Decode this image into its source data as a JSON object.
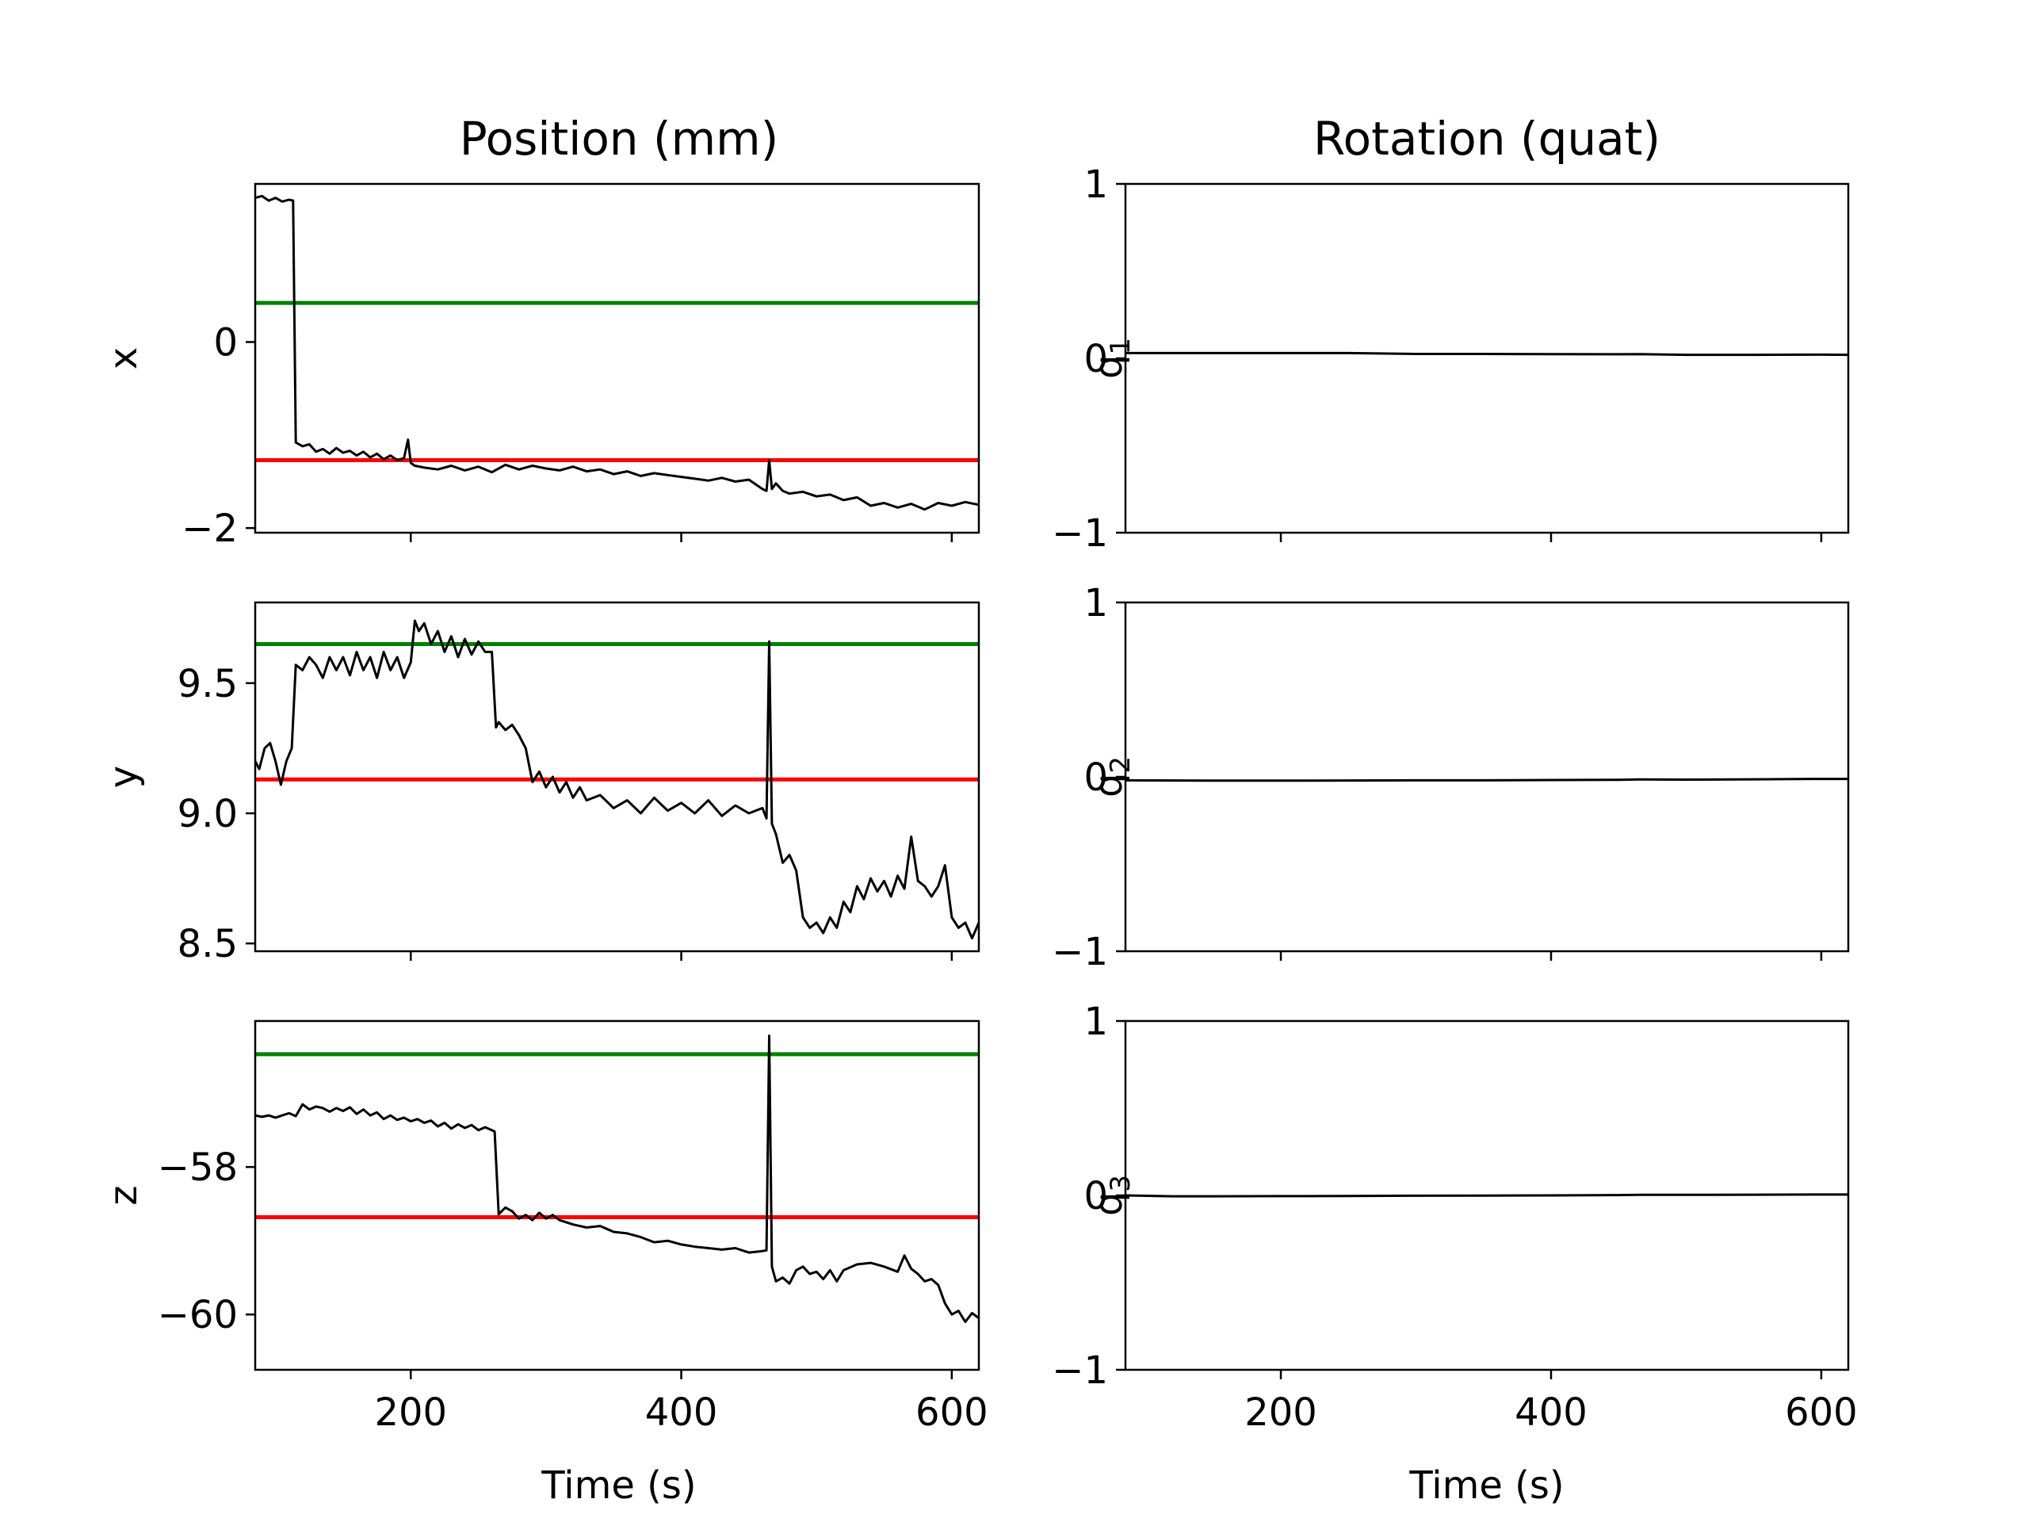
{
  "figure": {
    "position_title": "Position (mm)",
    "rotation_title": "Rotation (quat)",
    "xlabel": "Time (s)"
  },
  "chart_data": [
    {
      "type": "line",
      "panel": "position-x",
      "ylabel": "x",
      "xlim": [
        85,
        620
      ],
      "ylim": [
        -2.05,
        1.7
      ],
      "xticks": [
        200,
        400,
        600
      ],
      "yticks": [
        0,
        -2
      ],
      "ytick_labels": [
        "0",
        "−2"
      ],
      "grid": false,
      "reference_lines": [
        {
          "color": "#008000",
          "value": 0.42
        },
        {
          "color": "#ff0000",
          "value": -1.27
        }
      ],
      "series": [
        {
          "color": "#000000",
          "x": [
            85,
            90,
            95,
            100,
            105,
            110,
            113,
            115,
            120,
            125,
            130,
            135,
            140,
            145,
            150,
            155,
            160,
            165,
            170,
            175,
            180,
            185,
            190,
            195,
            198,
            200,
            203,
            210,
            220,
            230,
            240,
            250,
            260,
            270,
            280,
            290,
            300,
            310,
            320,
            330,
            340,
            350,
            360,
            370,
            380,
            390,
            400,
            410,
            420,
            430,
            440,
            450,
            460,
            463,
            465,
            467,
            470,
            475,
            480,
            490,
            500,
            510,
            520,
            530,
            540,
            550,
            560,
            570,
            580,
            590,
            600,
            610,
            620
          ],
          "y": [
            1.55,
            1.57,
            1.52,
            1.55,
            1.51,
            1.53,
            1.52,
            -1.08,
            -1.12,
            -1.1,
            -1.18,
            -1.15,
            -1.2,
            -1.14,
            -1.19,
            -1.17,
            -1.22,
            -1.18,
            -1.24,
            -1.2,
            -1.26,
            -1.22,
            -1.27,
            -1.25,
            -1.05,
            -1.3,
            -1.33,
            -1.35,
            -1.37,
            -1.33,
            -1.38,
            -1.34,
            -1.4,
            -1.32,
            -1.37,
            -1.33,
            -1.36,
            -1.38,
            -1.34,
            -1.39,
            -1.37,
            -1.42,
            -1.39,
            -1.44,
            -1.41,
            -1.43,
            -1.45,
            -1.47,
            -1.49,
            -1.46,
            -1.5,
            -1.48,
            -1.58,
            -1.6,
            -1.27,
            -1.58,
            -1.52,
            -1.6,
            -1.63,
            -1.61,
            -1.66,
            -1.64,
            -1.7,
            -1.67,
            -1.76,
            -1.73,
            -1.78,
            -1.74,
            -1.8,
            -1.73,
            -1.76,
            -1.72,
            -1.75
          ]
        }
      ]
    },
    {
      "type": "line",
      "panel": "position-y",
      "ylabel": "y",
      "xlim": [
        85,
        620
      ],
      "ylim": [
        8.47,
        9.81
      ],
      "xticks": [
        200,
        400,
        600
      ],
      "yticks": [
        9.5,
        9.0,
        8.5
      ],
      "ytick_labels": [
        "9.5",
        "9.0",
        "8.5"
      ],
      "grid": false,
      "reference_lines": [
        {
          "color": "#008000",
          "value": 9.65
        },
        {
          "color": "#ff0000",
          "value": 9.13
        }
      ],
      "series": [
        {
          "color": "#000000",
          "x": [
            85,
            88,
            92,
            96,
            100,
            104,
            108,
            112,
            115,
            120,
            125,
            130,
            135,
            140,
            145,
            150,
            155,
            160,
            165,
            170,
            175,
            180,
            185,
            190,
            195,
            200,
            203,
            206,
            210,
            215,
            220,
            225,
            230,
            235,
            240,
            245,
            250,
            255,
            260,
            263,
            265,
            270,
            275,
            280,
            285,
            290,
            295,
            300,
            305,
            310,
            315,
            320,
            325,
            330,
            340,
            350,
            360,
            370,
            380,
            390,
            400,
            410,
            420,
            430,
            440,
            450,
            460,
            463,
            465,
            467,
            470,
            475,
            480,
            485,
            490,
            495,
            500,
            505,
            510,
            515,
            520,
            525,
            530,
            535,
            540,
            545,
            550,
            555,
            560,
            565,
            570,
            575,
            580,
            585,
            590,
            595,
            600,
            605,
            610,
            615,
            620
          ],
          "y": [
            9.2,
            9.17,
            9.25,
            9.27,
            9.2,
            9.11,
            9.2,
            9.25,
            9.57,
            9.55,
            9.6,
            9.57,
            9.52,
            9.6,
            9.55,
            9.6,
            9.53,
            9.62,
            9.55,
            9.6,
            9.52,
            9.62,
            9.55,
            9.6,
            9.52,
            9.58,
            9.74,
            9.7,
            9.73,
            9.65,
            9.7,
            9.62,
            9.68,
            9.6,
            9.67,
            9.61,
            9.66,
            9.62,
            9.62,
            9.33,
            9.35,
            9.32,
            9.34,
            9.3,
            9.25,
            9.12,
            9.16,
            9.1,
            9.14,
            9.08,
            9.12,
            9.06,
            9.1,
            9.05,
            9.07,
            9.02,
            9.05,
            9.0,
            9.06,
            9.01,
            9.04,
            9.0,
            9.05,
            8.99,
            9.03,
            9.0,
            9.02,
            8.98,
            9.66,
            8.96,
            8.92,
            8.81,
            8.84,
            8.78,
            8.6,
            8.56,
            8.58,
            8.54,
            8.6,
            8.56,
            8.66,
            8.62,
            8.72,
            8.67,
            8.75,
            8.7,
            8.74,
            8.68,
            8.76,
            8.71,
            8.91,
            8.74,
            8.72,
            8.68,
            8.72,
            8.8,
            8.6,
            8.56,
            8.58,
            8.52,
            8.58
          ]
        }
      ]
    },
    {
      "type": "line",
      "panel": "position-z",
      "ylabel": "z",
      "xlim": [
        85,
        620
      ],
      "ylim": [
        -60.75,
        -56.02
      ],
      "xticks": [
        200,
        400,
        600
      ],
      "yticks": [
        -58,
        -60
      ],
      "ytick_labels": [
        "−58",
        "−60"
      ],
      "grid": false,
      "reference_lines": [
        {
          "color": "#008000",
          "value": -56.47
        },
        {
          "color": "#ff0000",
          "value": -58.68
        }
      ],
      "series": [
        {
          "color": "#000000",
          "x": [
            85,
            90,
            95,
            100,
            105,
            110,
            115,
            120,
            125,
            130,
            135,
            140,
            145,
            150,
            155,
            160,
            165,
            170,
            175,
            180,
            185,
            190,
            195,
            200,
            205,
            210,
            215,
            220,
            225,
            230,
            235,
            240,
            245,
            250,
            255,
            260,
            262,
            265,
            270,
            275,
            280,
            285,
            290,
            295,
            300,
            305,
            310,
            320,
            330,
            340,
            350,
            360,
            370,
            380,
            390,
            400,
            410,
            420,
            430,
            440,
            450,
            460,
            463,
            465,
            467,
            470,
            475,
            480,
            485,
            490,
            495,
            500,
            505,
            510,
            515,
            520,
            530,
            540,
            550,
            560,
            565,
            570,
            575,
            580,
            585,
            590,
            595,
            600,
            605,
            610,
            615,
            620
          ],
          "y": [
            -57.3,
            -57.32,
            -57.3,
            -57.33,
            -57.3,
            -57.27,
            -57.31,
            -57.15,
            -57.22,
            -57.18,
            -57.2,
            -57.25,
            -57.2,
            -57.24,
            -57.19,
            -57.28,
            -57.22,
            -57.3,
            -57.26,
            -57.35,
            -57.3,
            -57.36,
            -57.33,
            -57.38,
            -57.35,
            -57.4,
            -57.37,
            -57.45,
            -57.4,
            -57.48,
            -57.42,
            -57.47,
            -57.43,
            -57.5,
            -57.46,
            -57.5,
            -57.52,
            -58.64,
            -58.55,
            -58.6,
            -58.7,
            -58.65,
            -58.72,
            -58.62,
            -58.7,
            -58.65,
            -58.72,
            -58.78,
            -58.82,
            -58.8,
            -58.88,
            -58.9,
            -58.95,
            -59.02,
            -59.0,
            -59.05,
            -59.08,
            -59.1,
            -59.12,
            -59.1,
            -59.16,
            -59.14,
            -59.13,
            -56.22,
            -59.35,
            -59.55,
            -59.5,
            -59.58,
            -59.4,
            -59.35,
            -59.45,
            -59.42,
            -59.52,
            -59.4,
            -59.55,
            -59.4,
            -59.32,
            -59.3,
            -59.35,
            -59.42,
            -59.2,
            -59.38,
            -59.45,
            -59.55,
            -59.52,
            -59.6,
            -59.85,
            -60.0,
            -59.95,
            -60.1,
            -59.98,
            -60.05
          ]
        }
      ]
    },
    {
      "type": "line",
      "panel": "rotation-q1",
      "ylabel": "q",
      "ylabel_subscript": "1",
      "xlim": [
        85,
        620
      ],
      "ylim": [
        -1,
        1
      ],
      "xticks": [
        200,
        400,
        600
      ],
      "yticks": [
        1,
        0,
        -1
      ],
      "ytick_labels": [
        "1",
        "0",
        "−1"
      ],
      "grid": false,
      "series": [
        {
          "color": "#000000",
          "x": [
            85,
            150,
            200,
            250,
            300,
            350,
            400,
            450,
            465,
            500,
            550,
            600,
            620
          ],
          "y": [
            0.03,
            0.03,
            0.03,
            0.03,
            0.025,
            0.025,
            0.024,
            0.023,
            0.024,
            0.02,
            0.02,
            0.021,
            0.02
          ]
        }
      ]
    },
    {
      "type": "line",
      "panel": "rotation-q2",
      "ylabel": "q",
      "ylabel_subscript": "2",
      "xlim": [
        85,
        620
      ],
      "ylim": [
        -1,
        1
      ],
      "xticks": [
        200,
        400,
        600
      ],
      "yticks": [
        1,
        0,
        -1
      ],
      "ytick_labels": [
        "1",
        "0",
        "−1"
      ],
      "grid": false,
      "series": [
        {
          "color": "#000000",
          "x": [
            85,
            150,
            200,
            250,
            300,
            350,
            400,
            450,
            465,
            500,
            550,
            600,
            620
          ],
          "y": [
            -0.02,
            -0.022,
            -0.022,
            -0.021,
            -0.02,
            -0.02,
            -0.018,
            -0.017,
            -0.015,
            -0.016,
            -0.014,
            -0.012,
            -0.012
          ]
        }
      ]
    },
    {
      "type": "line",
      "panel": "rotation-q3",
      "ylabel": "q",
      "ylabel_subscript": "3",
      "xlim": [
        85,
        620
      ],
      "ylim": [
        -1,
        1
      ],
      "xticks": [
        200,
        400,
        600
      ],
      "yticks": [
        1,
        0,
        -1
      ],
      "ytick_labels": [
        "1",
        "0",
        "−1"
      ],
      "grid": false,
      "series": [
        {
          "color": "#000000",
          "x": [
            85,
            120,
            150,
            200,
            250,
            300,
            350,
            400,
            450,
            465,
            500,
            550,
            600,
            620
          ],
          "y": [
            0.0,
            -0.005,
            -0.005,
            -0.004,
            -0.003,
            -0.002,
            -0.001,
            0.0,
            0.002,
            0.003,
            0.003,
            0.004,
            0.005,
            0.005
          ]
        }
      ]
    }
  ]
}
